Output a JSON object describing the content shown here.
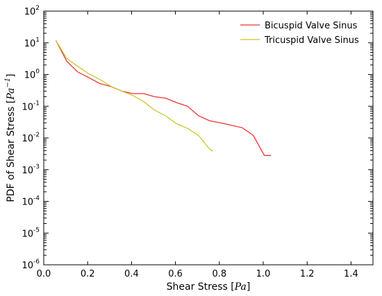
{
  "chart_data": {
    "type": "line",
    "xlabel": {
      "prefix": "Shear Stress [",
      "math": "Pa",
      "suffix": "]"
    },
    "ylabel": {
      "prefix": "PDF of Shear Stress [",
      "math": "Pa",
      "sup": "−1",
      "suffix": "]"
    },
    "xlim": [
      0.0,
      1.5
    ],
    "ylim": [
      1e-06,
      100
    ],
    "yscale": "log",
    "xticks": [
      "0.0",
      "0.2",
      "0.4",
      "0.6",
      "0.8",
      "1.0",
      "1.2",
      "1.4"
    ],
    "yticks": [
      {
        "base": "10",
        "exp": "-6"
      },
      {
        "base": "10",
        "exp": "-5"
      },
      {
        "base": "10",
        "exp": "-4"
      },
      {
        "base": "10",
        "exp": "-3"
      },
      {
        "base": "10",
        "exp": "-2"
      },
      {
        "base": "10",
        "exp": "-1"
      },
      {
        "base": "10",
        "exp": "0"
      },
      {
        "base": "10",
        "exp": "1"
      },
      {
        "base": "10",
        "exp": "2"
      }
    ],
    "grid": false,
    "legend_position": "top-right",
    "series": [
      {
        "name": "Bicuspid Valve Sinus",
        "color": "#ee3333",
        "x": [
          0.055,
          0.105,
          0.155,
          0.205,
          0.255,
          0.305,
          0.355,
          0.405,
          0.455,
          0.505,
          0.555,
          0.605,
          0.655,
          0.705,
          0.755,
          0.805,
          0.855,
          0.905,
          0.955,
          1.005,
          1.035
        ],
        "y": [
          12,
          2.6,
          1.2,
          0.8,
          0.52,
          0.42,
          0.3,
          0.25,
          0.25,
          0.2,
          0.18,
          0.13,
          0.1,
          0.05,
          0.035,
          0.03,
          0.025,
          0.021,
          0.012,
          0.0028,
          0.0028
        ]
      },
      {
        "name": "Tricuspid Valve Sinus",
        "color": "#c8c832",
        "x": [
          0.055,
          0.105,
          0.155,
          0.205,
          0.255,
          0.305,
          0.355,
          0.405,
          0.455,
          0.505,
          0.555,
          0.605,
          0.655,
          0.705,
          0.755,
          0.77
        ],
        "y": [
          12,
          3.2,
          1.8,
          1.05,
          0.7,
          0.43,
          0.3,
          0.22,
          0.14,
          0.075,
          0.05,
          0.028,
          0.02,
          0.012,
          0.0045,
          0.0038
        ]
      }
    ]
  }
}
